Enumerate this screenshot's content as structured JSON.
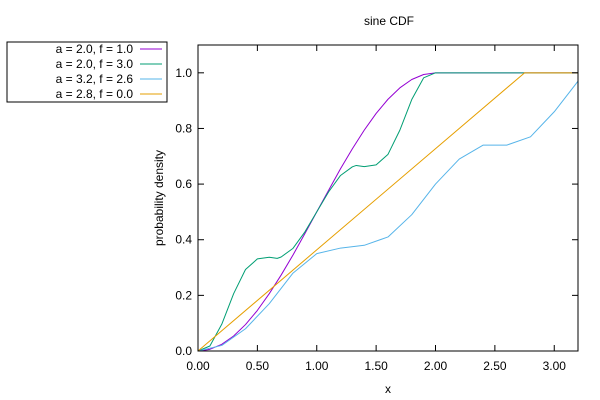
{
  "chart_data": {
    "type": "line",
    "title": "sine CDF",
    "xlabel": "x",
    "ylabel": "probability density",
    "xlim": [
      0,
      3.2
    ],
    "ylim": [
      0,
      1.1
    ],
    "x_ticks": [
      0,
      0.5,
      1.0,
      1.5,
      2.0,
      2.5,
      3.0
    ],
    "x_tick_labels": [
      "0.00",
      "0.50",
      "1.00",
      "1.50",
      "2.00",
      "2.50",
      "3.00"
    ],
    "y_ticks": [
      0,
      0.2,
      0.4,
      0.6,
      0.8,
      1.0
    ],
    "y_tick_labels": [
      "0.0",
      "0.2",
      "0.4",
      "0.6",
      "0.8",
      "1.0"
    ],
    "grid": false,
    "legend_position": "outside-top-left",
    "series": [
      {
        "name": "a = 2.0, f = 1.0",
        "color": "#9400d3",
        "x": [
          0,
          0.1,
          0.2,
          0.3,
          0.4,
          0.5,
          0.6,
          0.7,
          0.8,
          0.9,
          1.0,
          1.1,
          1.2,
          1.3,
          1.4,
          1.5,
          1.6,
          1.7,
          1.8,
          1.9,
          2.0,
          3.2
        ],
        "y": [
          0,
          0.006,
          0.024,
          0.054,
          0.095,
          0.146,
          0.206,
          0.273,
          0.345,
          0.422,
          0.5,
          0.578,
          0.655,
          0.727,
          0.794,
          0.854,
          0.905,
          0.946,
          0.976,
          0.994,
          1.0,
          1.0
        ]
      },
      {
        "name": "a = 2.0, f = 3.0",
        "color": "#009e73",
        "x": [
          0,
          0.1,
          0.2,
          0.3,
          0.4,
          0.5,
          0.6,
          0.667,
          0.7,
          0.8,
          0.9,
          1.0,
          1.1,
          1.2,
          1.3,
          1.333,
          1.4,
          1.5,
          1.6,
          1.7,
          1.8,
          1.9,
          2.0,
          3.2
        ],
        "y": [
          0,
          0.018,
          0.096,
          0.206,
          0.293,
          0.331,
          0.337,
          0.333,
          0.338,
          0.369,
          0.428,
          0.5,
          0.572,
          0.631,
          0.662,
          0.667,
          0.663,
          0.669,
          0.707,
          0.794,
          0.904,
          0.982,
          1.0,
          1.0
        ]
      },
      {
        "name": "a = 3.2, f = 2.6",
        "color": "#56b4e9",
        "x": [
          0,
          0.2,
          0.4,
          0.6,
          0.8,
          1.0,
          1.2,
          1.4,
          1.6,
          1.8,
          2.0,
          2.2,
          2.4,
          2.6,
          2.8,
          3.0,
          3.2
        ],
        "y": [
          0,
          0.02,
          0.08,
          0.17,
          0.28,
          0.35,
          0.37,
          0.38,
          0.41,
          0.49,
          0.6,
          0.69,
          0.74,
          0.74,
          0.77,
          0.86,
          0.97
        ]
      },
      {
        "name": "a = 2.8, f = 0.0",
        "color": "#e69f00",
        "x": [
          0,
          2.75,
          3.2
        ],
        "y": [
          0,
          1.0,
          1.0
        ]
      }
    ]
  }
}
